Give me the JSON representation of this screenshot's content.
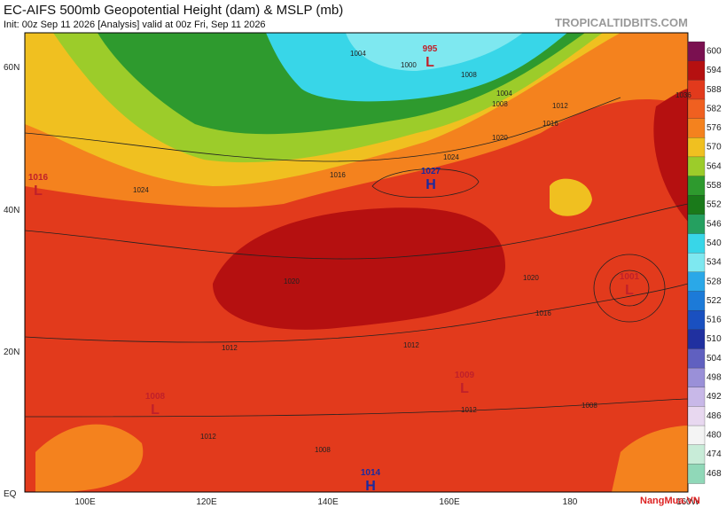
{
  "header": {
    "title": "EC-AIFS 500mb Geopotential Height (dam) & MSLP (mb)",
    "subtitle": "Init: 00z Sep 11 2026   [Analysis]   valid at 00z Fri, Sep 11 2026",
    "site": "TROPICALTIDBITS.COM",
    "watermark": "NangMua.VN"
  },
  "map": {
    "lat_labels": [
      "60N",
      "40N",
      "20N",
      "EQ"
    ],
    "lon_labels": [
      "100E",
      "120E",
      "140E",
      "160E",
      "180",
      "160W"
    ],
    "pressure_centers": [
      {
        "value": "995",
        "letter": "L"
      },
      {
        "value": "1027",
        "letter": "H"
      },
      {
        "value": "1016",
        "letter": "L"
      },
      {
        "value": "1008",
        "letter": "L"
      },
      {
        "value": "1009",
        "letter": "L"
      },
      {
        "value": "1001",
        "letter": "L"
      },
      {
        "value": "1014",
        "letter": "H"
      }
    ],
    "isobar_labels": [
      "1004",
      "1000",
      "1008",
      "1004",
      "1008",
      "1012",
      "1016",
      "1020",
      "1024",
      "1016",
      "1024",
      "1020",
      "1020",
      "1016",
      "1012",
      "1012",
      "1008",
      "1008",
      "1012",
      "1012",
      "1036"
    ]
  },
  "colorbar": {
    "labels": [
      600,
      594,
      588,
      582,
      576,
      570,
      564,
      558,
      552,
      546,
      540,
      534,
      528,
      522,
      516,
      510,
      504,
      498,
      492,
      486,
      480,
      474,
      468
    ],
    "colors": [
      "#7a1050",
      "#b51010",
      "#e23a1c",
      "#f06020",
      "#f4821e",
      "#f0c020",
      "#9ccc2a",
      "#2e9a2e",
      "#1a7a1a",
      "#25a060",
      "#38d6e8",
      "#7ee8f0",
      "#2aa8e8",
      "#1c7ad8",
      "#1a50c0",
      "#2030a0",
      "#6060c0",
      "#9a90d8",
      "#c8b8e8",
      "#e8d8f0",
      "#f4f4f4",
      "#c8ecd8",
      "#90d8b8"
    ]
  }
}
